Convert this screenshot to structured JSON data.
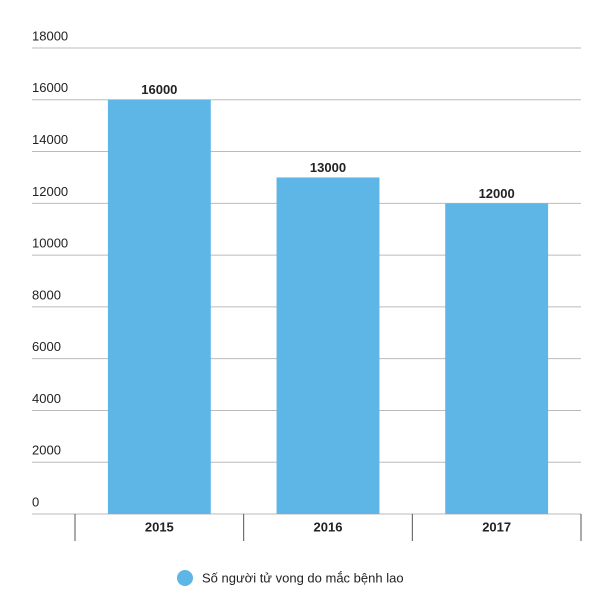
{
  "chart_data": {
    "type": "bar",
    "categories": [
      "2015",
      "2016",
      "2017"
    ],
    "series": [
      {
        "name": "Số người tử vong do mắc bệnh lao",
        "color": "#5db6e6",
        "values": [
          16000,
          13000,
          12000
        ]
      }
    ],
    "ylim": [
      0,
      18000
    ],
    "yticks": [
      0,
      2000,
      4000,
      6000,
      8000,
      10000,
      12000,
      14000,
      16000,
      18000
    ],
    "grid": true
  }
}
